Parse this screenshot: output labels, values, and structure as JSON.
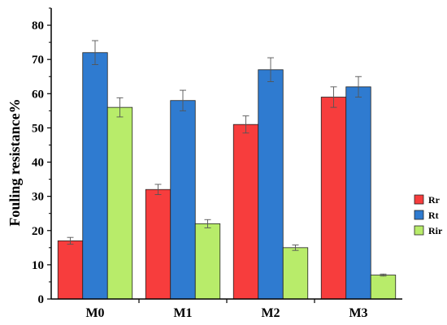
{
  "chart_data": {
    "type": "bar",
    "ylabel": "Fouling resistance%",
    "xlabel": "",
    "ylim": [
      0,
      85
    ],
    "yticks": [
      0,
      10,
      20,
      30,
      40,
      50,
      60,
      70,
      80
    ],
    "categories": [
      "M0",
      "M1",
      "M2",
      "M3"
    ],
    "series": [
      {
        "name": "Rr",
        "color": "#f73d3d",
        "values": [
          17,
          32,
          51,
          59
        ],
        "errors": [
          1,
          1.5,
          2.5,
          3
        ]
      },
      {
        "name": "Rt",
        "color": "#2f7bd0",
        "values": [
          72,
          58,
          67,
          62
        ],
        "errors": [
          3.5,
          3,
          3.5,
          3
        ]
      },
      {
        "name": "Rir",
        "color": "#b8ec6a",
        "values": [
          56,
          22,
          15,
          7
        ],
        "errors": [
          2.8,
          1.2,
          0.8,
          0.3
        ]
      }
    ],
    "legend_position": "right"
  }
}
